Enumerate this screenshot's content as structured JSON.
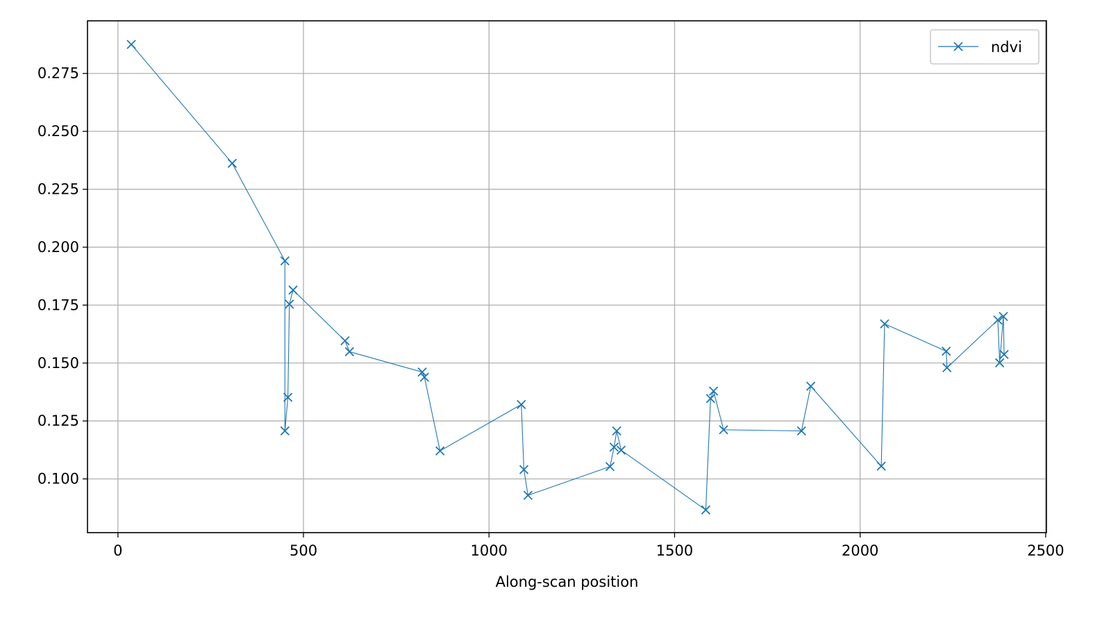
{
  "chart_data": {
    "type": "line",
    "title": "",
    "xlabel": "Along-scan position",
    "ylabel": "",
    "xlim": [
      -82,
      2502
    ],
    "ylim": [
      0.0768,
      0.2977
    ],
    "xticks": [
      0,
      500,
      1000,
      1500,
      2000,
      2500
    ],
    "xtick_labels": [
      "0",
      "500",
      "1000",
      "1500",
      "2000",
      "2500"
    ],
    "yticks": [
      0.1,
      0.125,
      0.15,
      0.175,
      0.2,
      0.225,
      0.25,
      0.275
    ],
    "ytick_labels": [
      "0.100",
      "0.125",
      "0.150",
      "0.175",
      "0.200",
      "0.225",
      "0.250",
      "0.275"
    ],
    "grid": true,
    "legend_position": "top-right",
    "series": [
      {
        "name": "ndvi",
        "color": "#1f77b4",
        "marker": "x",
        "points": [
          [
            36,
            0.2875
          ],
          [
            308,
            0.2362
          ],
          [
            450,
            0.1941
          ],
          [
            450,
            0.1207
          ],
          [
            458,
            0.1352
          ],
          [
            462,
            0.1754
          ],
          [
            472,
            0.1815
          ],
          [
            612,
            0.1596
          ],
          [
            624,
            0.1549
          ],
          [
            820,
            0.1461
          ],
          [
            826,
            0.1439
          ],
          [
            868,
            0.1121
          ],
          [
            1087,
            0.1321
          ],
          [
            1094,
            0.104
          ],
          [
            1105,
            0.0929
          ],
          [
            1326,
            0.1053
          ],
          [
            1337,
            0.1137
          ],
          [
            1344,
            0.1207
          ],
          [
            1356,
            0.1124
          ],
          [
            1584,
            0.0866
          ],
          [
            1597,
            0.1347
          ],
          [
            1605,
            0.1379
          ],
          [
            1632,
            0.1212
          ],
          [
            1842,
            0.1207
          ],
          [
            1867,
            0.14
          ],
          [
            2057,
            0.1055
          ],
          [
            2066,
            0.1669
          ],
          [
            2232,
            0.1551
          ],
          [
            2234,
            0.148
          ],
          [
            2371,
            0.1686
          ],
          [
            2376,
            0.1501
          ],
          [
            2386,
            0.1701
          ],
          [
            2388,
            0.1537
          ]
        ]
      }
    ]
  }
}
